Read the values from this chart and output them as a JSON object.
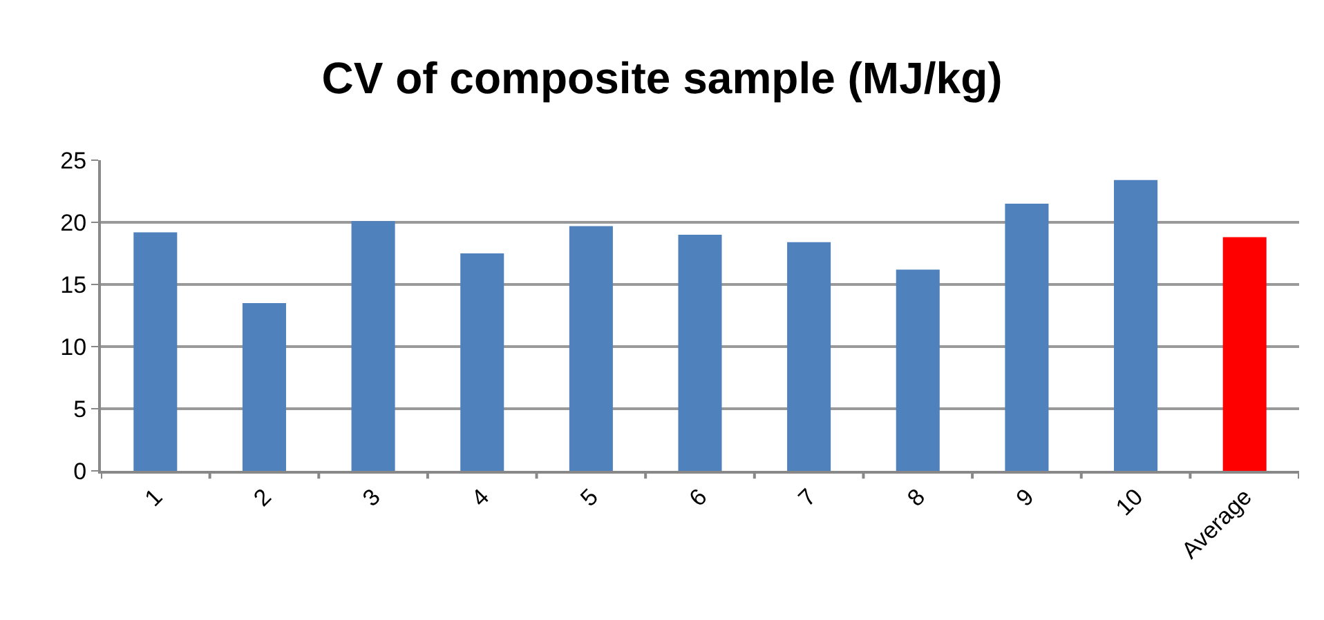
{
  "chart_data": {
    "type": "bar",
    "title": "CV of composite sample (MJ/kg)",
    "categories": [
      "1",
      "2",
      "3",
      "4",
      "5",
      "6",
      "7",
      "8",
      "9",
      "10",
      "Average"
    ],
    "values": [
      19.2,
      13.5,
      20.1,
      17.5,
      19.7,
      19.0,
      18.4,
      16.2,
      21.5,
      23.4,
      18.8
    ],
    "colors": [
      "#4f81bd",
      "#4f81bd",
      "#4f81bd",
      "#4f81bd",
      "#4f81bd",
      "#4f81bd",
      "#4f81bd",
      "#4f81bd",
      "#4f81bd",
      "#4f81bd",
      "#ff0000"
    ],
    "ylim": [
      0,
      25
    ],
    "yticks": [
      0,
      5,
      10,
      15,
      20,
      25
    ],
    "grid": "y"
  }
}
